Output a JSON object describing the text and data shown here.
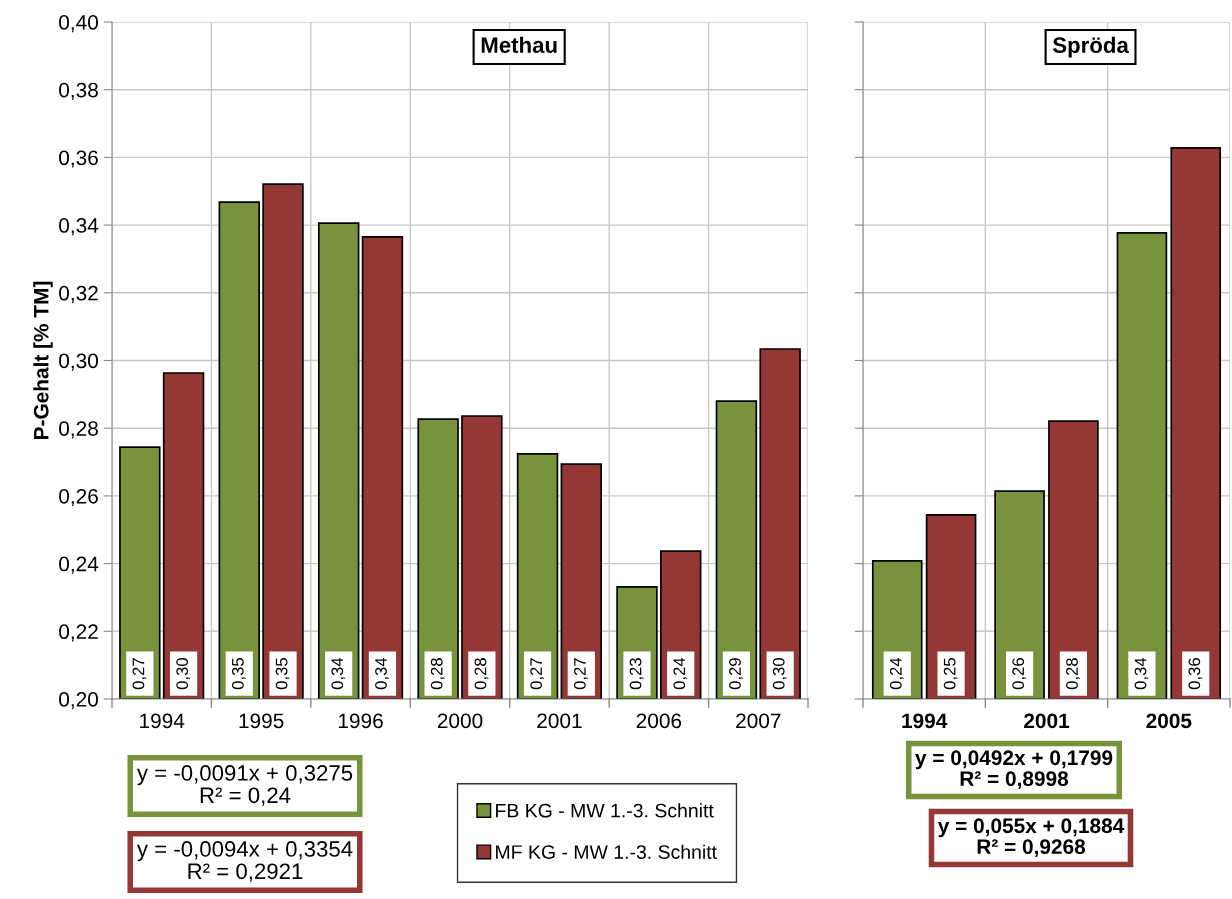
{
  "chart_data": [
    {
      "type": "bar",
      "title": "Methau",
      "ylabel": "P-Gehalt [% TM]",
      "categories": [
        "1994",
        "1995",
        "1996",
        "2000",
        "2001",
        "2006",
        "2007"
      ],
      "series": [
        {
          "name": "FB KG - MW 1.-3. Schnitt",
          "color": "#77933c",
          "values": [
            0.2744,
            0.3468,
            0.3406,
            0.2827,
            0.2724,
            0.2331,
            0.288
          ],
          "value_labels": [
            "0,27",
            "0,35",
            "0,34",
            "0,28",
            "0,27",
            "0,23",
            "0,29"
          ]
        },
        {
          "name": "MF KG - MW 1.-3. Schnitt",
          "color": "#953735",
          "values": [
            0.2963,
            0.3521,
            0.3365,
            0.2836,
            0.2694,
            0.2437,
            0.3034
          ],
          "value_labels": [
            "0,30",
            "0,35",
            "0,34",
            "0,28",
            "0,27",
            "0,24",
            "0,30"
          ]
        }
      ],
      "ylim": [
        0.2,
        0.4
      ],
      "yticks": [
        {
          "value": 0.2,
          "label": "0,20"
        },
        {
          "value": 0.22,
          "label": "0,22"
        },
        {
          "value": 0.24,
          "label": "0,24"
        },
        {
          "value": 0.26,
          "label": "0,26"
        },
        {
          "value": 0.28,
          "label": "0,28"
        },
        {
          "value": 0.3,
          "label": "0,30"
        },
        {
          "value": 0.32,
          "label": "0,32"
        },
        {
          "value": 0.34,
          "label": "0,34"
        },
        {
          "value": 0.36,
          "label": "0,36"
        },
        {
          "value": 0.38,
          "label": "0,38"
        },
        {
          "value": 0.4,
          "label": "0,40"
        }
      ],
      "grid": true,
      "legend": "bottom",
      "annotations": [
        "y = -0,0091x + 0,3275\nR² = 0,24",
        "y = -0,0094x + 0,3354\nR² = 0,2921"
      ]
    },
    {
      "type": "bar",
      "title": "Spröda",
      "categories": [
        "1994",
        "2001",
        "2005"
      ],
      "series": [
        {
          "color": "#77933c",
          "values": [
            0.2408,
            0.2614,
            0.3377
          ],
          "value_labels": [
            "0,24",
            "0,26",
            "0,34"
          ]
        },
        {
          "color": "#953735",
          "values": [
            0.2544,
            0.2821,
            0.3628
          ],
          "value_labels": [
            "0,25",
            "0,28",
            "0,36"
          ]
        }
      ],
      "ylim": [
        0.2,
        0.4
      ],
      "yticks": [
        {
          "value": 0.2,
          "label": null
        },
        {
          "value": 0.22,
          "label": null
        },
        {
          "value": 0.24,
          "label": null
        },
        {
          "value": 0.26,
          "label": null
        },
        {
          "value": 0.28,
          "label": null
        },
        {
          "value": 0.3,
          "label": null
        },
        {
          "value": 0.32,
          "label": null
        },
        {
          "value": 0.34,
          "label": null
        },
        {
          "value": 0.36,
          "label": null
        },
        {
          "value": 0.38,
          "label": null
        },
        {
          "value": 0.4,
          "label": null
        }
      ],
      "grid": true,
      "tick_labels": "x",
      "annotations": [
        "y = 0,0492x + 0,1799\nR² = 0,8998",
        "y = 0,055x + 0,1884\nR² = 0,9268"
      ]
    }
  ]
}
